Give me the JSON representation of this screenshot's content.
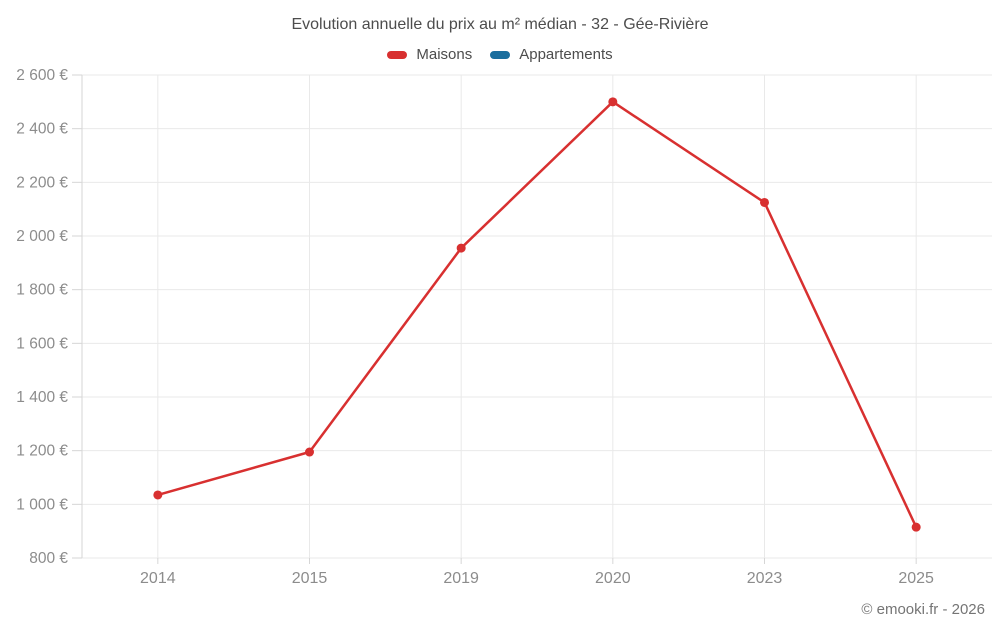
{
  "header": {
    "title": "Evolution annuelle du prix au m² médian - 32 - Gée-Rivière"
  },
  "legend": [
    {
      "label": "Maisons",
      "color": "#d83030"
    },
    {
      "label": "Appartements",
      "color": "#1a6e9e"
    }
  ],
  "footer": {
    "credit": "© emooki.fr - 2026"
  },
  "colors": {
    "gridline": "#e9e9e9",
    "axis": "#d6d6d6",
    "tick_label": "#8c8c8c",
    "title_text": "#4d4d4d"
  },
  "chart_data": {
    "type": "line",
    "title": "Evolution annuelle du prix au m² médian - 32 - Gée-Rivière",
    "xlabel": "",
    "ylabel": "",
    "categories": [
      "2014",
      "2015",
      "2019",
      "2020",
      "2023",
      "2025"
    ],
    "series": [
      {
        "name": "Maisons",
        "color": "#d83030",
        "values": [
          1035,
          1195,
          1955,
          2500,
          2125,
          915
        ]
      },
      {
        "name": "Appartements",
        "color": "#1a6e9e",
        "values": []
      }
    ],
    "ylim": [
      800,
      2600
    ],
    "ytick_step": 200,
    "ytick_labels": [
      "800 €",
      "1 000 €",
      "1 200 €",
      "1 400 €",
      "1 600 €",
      "1 800 €",
      "2 000 €",
      "2 200 €",
      "2 400 €",
      "2 600 €"
    ],
    "grid": true,
    "legend_position": "top",
    "legend_entries": [
      "Maisons",
      "Appartements"
    ]
  }
}
